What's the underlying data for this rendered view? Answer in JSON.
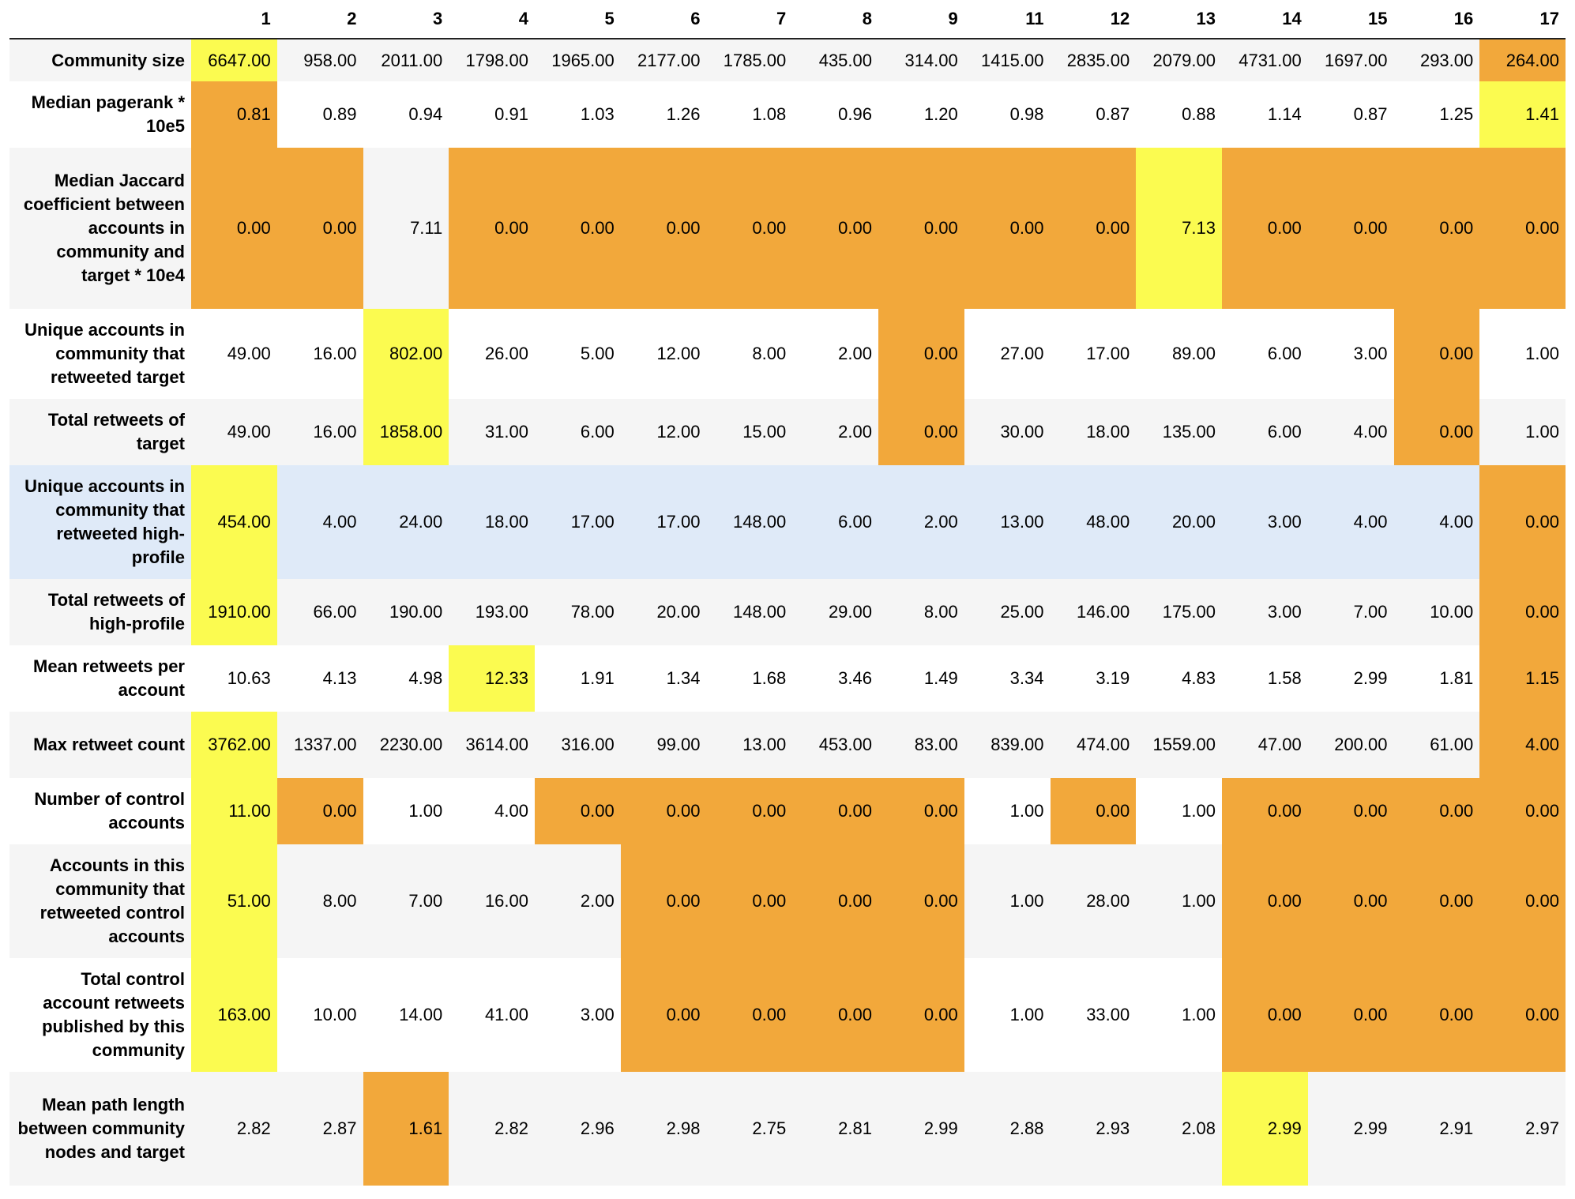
{
  "colors": {
    "max_highlight": "#fbfb50",
    "min_highlight": "#f2a83b",
    "row_hover": "#dfeaf8",
    "row_alt": "#f5f5f5"
  },
  "columns": [
    "1",
    "2",
    "3",
    "4",
    "5",
    "6",
    "7",
    "8",
    "9",
    "11",
    "12",
    "13",
    "14",
    "15",
    "16",
    "17"
  ],
  "rows": [
    {
      "label": "Community size",
      "values": [
        "6647.00",
        "958.00",
        "2011.00",
        "1798.00",
        "1965.00",
        "2177.00",
        "1785.00",
        "435.00",
        "314.00",
        "1415.00",
        "2835.00",
        "2079.00",
        "4731.00",
        "1697.00",
        "293.00",
        "264.00"
      ],
      "styles": [
        "hi",
        "",
        "",
        "",
        "",
        "",
        "",
        "",
        "",
        "",
        "",
        "",
        "",
        "",
        "",
        "lo"
      ]
    },
    {
      "label": "Median pagerank * 10e5",
      "values": [
        "0.81",
        "0.89",
        "0.94",
        "0.91",
        "1.03",
        "1.26",
        "1.08",
        "0.96",
        "1.20",
        "0.98",
        "0.87",
        "0.88",
        "1.14",
        "0.87",
        "1.25",
        "1.41"
      ],
      "styles": [
        "lo",
        "",
        "",
        "",
        "",
        "",
        "",
        "",
        "",
        "",
        "",
        "",
        "",
        "",
        "",
        "hi"
      ]
    },
    {
      "label": "Median Jaccard coefficient between accounts in community and target * 10e4",
      "values": [
        "0.00",
        "0.00",
        "7.11",
        "0.00",
        "0.00",
        "0.00",
        "0.00",
        "0.00",
        "0.00",
        "0.00",
        "0.00",
        "7.13",
        "0.00",
        "0.00",
        "0.00",
        "0.00"
      ],
      "styles": [
        "lo",
        "lo",
        "",
        "lo",
        "lo",
        "lo",
        "lo",
        "lo",
        "lo",
        "lo",
        "lo",
        "hi",
        "lo",
        "lo",
        "lo",
        "lo"
      ]
    },
    {
      "label": "Unique accounts in community that retweeted target",
      "values": [
        "49.00",
        "16.00",
        "802.00",
        "26.00",
        "5.00",
        "12.00",
        "8.00",
        "2.00",
        "0.00",
        "27.00",
        "17.00",
        "89.00",
        "6.00",
        "3.00",
        "0.00",
        "1.00"
      ],
      "styles": [
        "",
        "",
        "hi",
        "",
        "",
        "",
        "",
        "",
        "lo",
        "",
        "",
        "",
        "",
        "",
        "lo",
        ""
      ]
    },
    {
      "label": "Total retweets of target",
      "values": [
        "49.00",
        "16.00",
        "1858.00",
        "31.00",
        "6.00",
        "12.00",
        "15.00",
        "2.00",
        "0.00",
        "30.00",
        "18.00",
        "135.00",
        "6.00",
        "4.00",
        "0.00",
        "1.00"
      ],
      "styles": [
        "",
        "",
        "hi",
        "",
        "",
        "",
        "",
        "",
        "lo",
        "",
        "",
        "",
        "",
        "",
        "lo",
        ""
      ]
    },
    {
      "label": "Unique accounts in community that retweeted high-profile",
      "values": [
        "454.00",
        "4.00",
        "24.00",
        "18.00",
        "17.00",
        "17.00",
        "148.00",
        "6.00",
        "2.00",
        "13.00",
        "48.00",
        "20.00",
        "3.00",
        "4.00",
        "4.00",
        "0.00"
      ],
      "styles": [
        "hi",
        "",
        "",
        "",
        "",
        "",
        "",
        "",
        "",
        "",
        "",
        "",
        "",
        "",
        "",
        "lo"
      ]
    },
    {
      "label": "Total retweets of high-profile",
      "values": [
        "1910.00",
        "66.00",
        "190.00",
        "193.00",
        "78.00",
        "20.00",
        "148.00",
        "29.00",
        "8.00",
        "25.00",
        "146.00",
        "175.00",
        "3.00",
        "7.00",
        "10.00",
        "0.00"
      ],
      "styles": [
        "hi",
        "",
        "",
        "",
        "",
        "",
        "",
        "",
        "",
        "",
        "",
        "",
        "",
        "",
        "",
        "lo"
      ]
    },
    {
      "label": "Mean retweets per account",
      "values": [
        "10.63",
        "4.13",
        "4.98",
        "12.33",
        "1.91",
        "1.34",
        "1.68",
        "3.46",
        "1.49",
        "3.34",
        "3.19",
        "4.83",
        "1.58",
        "2.99",
        "1.81",
        "1.15"
      ],
      "styles": [
        "",
        "",
        "",
        "hi",
        "",
        "",
        "",
        "",
        "",
        "",
        "",
        "",
        "",
        "",
        "",
        "lo"
      ]
    },
    {
      "label": "Max retweet count",
      "values": [
        "3762.00",
        "1337.00",
        "2230.00",
        "3614.00",
        "316.00",
        "99.00",
        "13.00",
        "453.00",
        "83.00",
        "839.00",
        "474.00",
        "1559.00",
        "47.00",
        "200.00",
        "61.00",
        "4.00"
      ],
      "styles": [
        "hi",
        "",
        "",
        "",
        "",
        "",
        "",
        "",
        "",
        "",
        "",
        "",
        "",
        "",
        "",
        "lo"
      ]
    },
    {
      "label": "Number of control accounts",
      "values": [
        "11.00",
        "0.00",
        "1.00",
        "4.00",
        "0.00",
        "0.00",
        "0.00",
        "0.00",
        "0.00",
        "1.00",
        "0.00",
        "1.00",
        "0.00",
        "0.00",
        "0.00",
        "0.00"
      ],
      "styles": [
        "hi",
        "lo",
        "",
        "",
        "lo",
        "lo",
        "lo",
        "lo",
        "lo",
        "",
        "lo",
        "",
        "lo",
        "lo",
        "lo",
        "lo"
      ]
    },
    {
      "label": "Accounts in this community that retweeted control accounts",
      "values": [
        "51.00",
        "8.00",
        "7.00",
        "16.00",
        "2.00",
        "0.00",
        "0.00",
        "0.00",
        "0.00",
        "1.00",
        "28.00",
        "1.00",
        "0.00",
        "0.00",
        "0.00",
        "0.00"
      ],
      "styles": [
        "hi",
        "",
        "",
        "",
        "",
        "lo",
        "lo",
        "lo",
        "lo",
        "",
        "",
        "",
        "lo",
        "lo",
        "lo",
        "lo"
      ]
    },
    {
      "label": "Total control account retweets published by this community",
      "values": [
        "163.00",
        "10.00",
        "14.00",
        "41.00",
        "3.00",
        "0.00",
        "0.00",
        "0.00",
        "0.00",
        "1.00",
        "33.00",
        "1.00",
        "0.00",
        "0.00",
        "0.00",
        "0.00"
      ],
      "styles": [
        "hi",
        "",
        "",
        "",
        "",
        "lo",
        "lo",
        "lo",
        "lo",
        "",
        "",
        "",
        "lo",
        "lo",
        "lo",
        "lo"
      ]
    },
    {
      "label": "Mean path length between community nodes and target",
      "values": [
        "2.82",
        "2.87",
        "1.61",
        "2.82",
        "2.96",
        "2.98",
        "2.75",
        "2.81",
        "2.99",
        "2.88",
        "2.93",
        "2.08",
        "2.99",
        "2.99",
        "2.91",
        "2.97"
      ],
      "styles": [
        "",
        "",
        "lo",
        "",
        "",
        "",
        "",
        "",
        "",
        "",
        "",
        "",
        "hi",
        "",
        "",
        ""
      ]
    }
  ]
}
